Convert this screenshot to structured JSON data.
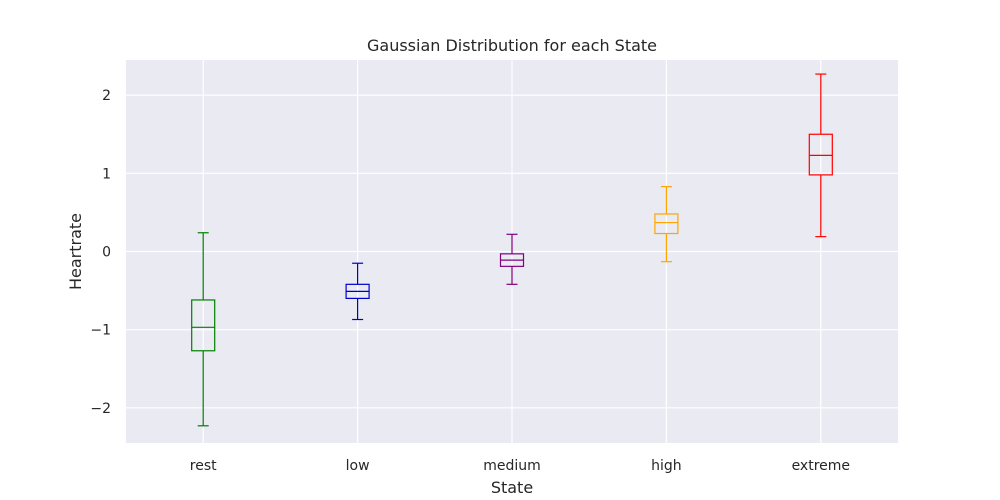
{
  "chart_data": {
    "type": "box",
    "title": "Gaussian Distribution for each State",
    "xlabel": "State",
    "ylabel": "Heartrate",
    "ylim": [
      -2.45,
      2.45
    ],
    "yticks": [
      2,
      1,
      0,
      -1,
      -2
    ],
    "ytick_labels": [
      "2",
      "1",
      "0",
      "−1",
      "−2"
    ],
    "grid": true,
    "categories": [
      "rest",
      "low",
      "medium",
      "high",
      "extreme"
    ],
    "boxes": [
      {
        "category": "rest",
        "whisker_low": -2.23,
        "q1": -1.27,
        "median": -0.97,
        "q3": -0.62,
        "whisker_high": 0.24,
        "color": "#008000"
      },
      {
        "category": "low",
        "whisker_low": -0.87,
        "q1": -0.6,
        "median": -0.51,
        "q3": -0.42,
        "whisker_high": -0.15,
        "color": "#0000cc"
      },
      {
        "category": "medium",
        "whisker_low": -0.42,
        "q1": -0.19,
        "median": -0.11,
        "q3": -0.03,
        "whisker_high": 0.22,
        "color": "#800080"
      },
      {
        "category": "high",
        "whisker_low": -0.13,
        "q1": 0.23,
        "median": 0.37,
        "q3": 0.48,
        "whisker_high": 0.83,
        "color": "#ffa500"
      },
      {
        "category": "extreme",
        "whisker_low": 0.19,
        "q1": 0.98,
        "median": 1.23,
        "q3": 1.5,
        "whisker_high": 2.27,
        "color": "#ff0000"
      }
    ],
    "colors": {
      "background": "#ffffff",
      "plot_area": "#eaeaf2",
      "grid": "#ffffff",
      "text": "#262626"
    }
  }
}
